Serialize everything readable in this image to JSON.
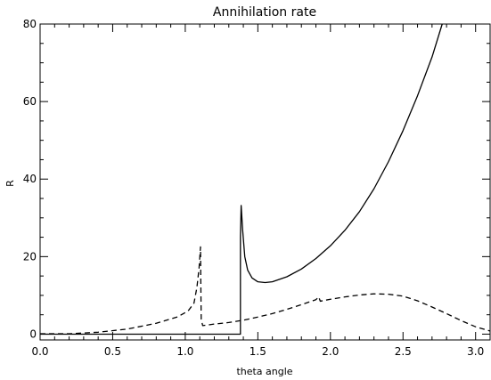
{
  "chart_data": {
    "type": "line",
    "title": "Annihilation rate",
    "xlabel": "theta angle",
    "ylabel": "R",
    "xlim": [
      0.0,
      3.1
    ],
    "ylim": [
      -1.5,
      80
    ],
    "x_ticks": [
      "0.0",
      "0.5",
      "1.0",
      "1.5",
      "2.0",
      "2.5",
      "3.0"
    ],
    "x_tick_values": [
      0.0,
      0.5,
      1.0,
      1.5,
      2.0,
      2.5,
      3.0
    ],
    "y_ticks": [
      "0",
      "20",
      "40",
      "60",
      "80"
    ],
    "y_tick_values": [
      0,
      20,
      40,
      60,
      80
    ],
    "grid": false,
    "series": [
      {
        "style": "solid",
        "color": "#000000",
        "points": [
          [
            0.0,
            0.0
          ],
          [
            1.38,
            0.0
          ],
          [
            1.38,
            25.0
          ],
          [
            1.385,
            33.2
          ],
          [
            1.395,
            27.0
          ],
          [
            1.41,
            20.0
          ],
          [
            1.43,
            16.5
          ],
          [
            1.46,
            14.5
          ],
          [
            1.5,
            13.5
          ],
          [
            1.55,
            13.3
          ],
          [
            1.6,
            13.5
          ],
          [
            1.7,
            14.8
          ],
          [
            1.8,
            16.8
          ],
          [
            1.9,
            19.5
          ],
          [
            2.0,
            22.8
          ],
          [
            2.1,
            26.8
          ],
          [
            2.2,
            31.6
          ],
          [
            2.3,
            37.5
          ],
          [
            2.4,
            44.5
          ],
          [
            2.5,
            52.5
          ],
          [
            2.6,
            61.5
          ],
          [
            2.7,
            71.5
          ],
          [
            2.77,
            80.0
          ]
        ]
      },
      {
        "style": "dashed",
        "color": "#000000",
        "points": [
          [
            0.0,
            0.1
          ],
          [
            0.2,
            0.1
          ],
          [
            0.4,
            0.5
          ],
          [
            0.6,
            1.3
          ],
          [
            0.8,
            2.8
          ],
          [
            0.95,
            4.5
          ],
          [
            1.02,
            6.0
          ],
          [
            1.06,
            8.0
          ],
          [
            1.08,
            12.0
          ],
          [
            1.095,
            17.0
          ],
          [
            1.105,
            22.5
          ],
          [
            1.108,
            10.0
          ],
          [
            1.11,
            3.8
          ],
          [
            1.12,
            2.2
          ],
          [
            1.2,
            2.6
          ],
          [
            1.3,
            3.0
          ],
          [
            1.4,
            3.6
          ],
          [
            1.5,
            4.4
          ],
          [
            1.6,
            5.3
          ],
          [
            1.7,
            6.4
          ],
          [
            1.8,
            7.6
          ],
          [
            1.9,
            8.9
          ],
          [
            1.92,
            9.6
          ],
          [
            1.93,
            8.5
          ],
          [
            2.0,
            9.0
          ],
          [
            2.1,
            9.6
          ],
          [
            2.2,
            10.1
          ],
          [
            2.3,
            10.4
          ],
          [
            2.4,
            10.3
          ],
          [
            2.5,
            9.8
          ],
          [
            2.6,
            8.6
          ],
          [
            2.7,
            7.0
          ],
          [
            2.8,
            5.3
          ],
          [
            2.9,
            3.5
          ],
          [
            3.0,
            1.9
          ],
          [
            3.1,
            0.8
          ]
        ]
      }
    ]
  }
}
